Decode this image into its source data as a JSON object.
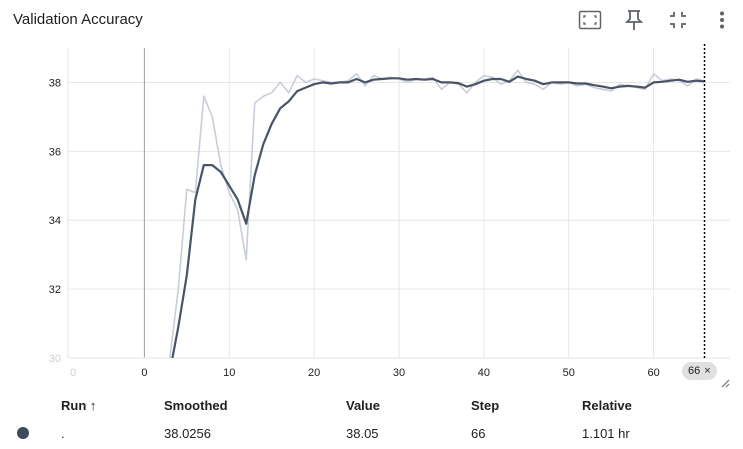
{
  "card": {
    "title": "Validation Accuracy",
    "icons": [
      "fullscreen-icon",
      "pin-icon",
      "fit-domain-icon",
      "more-vert-icon"
    ]
  },
  "colors": {
    "smoothed": "#4a5468",
    "raw": "#c8ced9",
    "grid": "#e6e6e6",
    "axis": "#9e9e9e",
    "cursor": "#000000"
  },
  "step_chip": {
    "label": "66",
    "close_glyph": "×"
  },
  "table": {
    "headers": {
      "run": "Run ↑",
      "smoothed": "Smoothed",
      "value": "Value",
      "step": "Step",
      "relative": "Relative"
    },
    "row": {
      "run": ".",
      "smoothed": "38.0256",
      "value": "38.05",
      "step": "66",
      "relative": "1.101 hr",
      "color": "#3f4a5c"
    }
  },
  "chart_data": {
    "type": "line",
    "title": "Validation Accuracy",
    "xlabel": "",
    "ylabel": "",
    "xlim": [
      -9,
      69
    ],
    "ylim": [
      30,
      39
    ],
    "xticks": [
      0,
      10,
      20,
      30,
      40,
      50,
      60
    ],
    "yticks": [
      30,
      32,
      34,
      36,
      38
    ],
    "faint_x_label": "0",
    "faint_y_label": "30",
    "grid": true,
    "cursor_step": 66,
    "series": [
      {
        "name": "",
        "role": "raw",
        "x": [
          3,
          4,
          5,
          6,
          7,
          8,
          9,
          10,
          11,
          12,
          13,
          14,
          15,
          16,
          17,
          18,
          19,
          20,
          21,
          22,
          23,
          24,
          25,
          26,
          27,
          28,
          29,
          30,
          31,
          32,
          33,
          34,
          35,
          36,
          37,
          38,
          39,
          40,
          41,
          42,
          43,
          44,
          45,
          46,
          47,
          48,
          49,
          50,
          51,
          52,
          53,
          54,
          55,
          56,
          57,
          58,
          59,
          60,
          61,
          62,
          63,
          64,
          65,
          66
        ],
        "y": [
          30,
          32,
          34.9,
          34.8,
          37.6,
          37.0,
          35.6,
          34.8,
          34.3,
          32.85,
          37.4,
          37.6,
          37.7,
          38.0,
          37.7,
          38.2,
          38.0,
          38.1,
          38.05,
          38.0,
          38.0,
          38.05,
          38.25,
          37.9,
          38.2,
          38.1,
          38.15,
          38.1,
          38.0,
          38.1,
          38.1,
          38.15,
          37.8,
          38.0,
          37.95,
          37.7,
          38.0,
          38.2,
          38.15,
          37.95,
          38.05,
          38.35,
          38.0,
          37.95,
          37.8,
          38.0,
          37.95,
          38.0,
          37.9,
          37.95,
          37.85,
          37.8,
          37.75,
          37.95,
          37.9,
          37.85,
          37.8,
          38.25,
          38.05,
          38.1,
          38.05,
          37.9,
          38.1,
          38.05
        ]
      },
      {
        "name": "",
        "role": "smoothed",
        "x": [
          3,
          4,
          5,
          6,
          7,
          8,
          9,
          10,
          11,
          12,
          13,
          14,
          15,
          16,
          17,
          18,
          19,
          20,
          21,
          22,
          23,
          24,
          25,
          26,
          27,
          28,
          29,
          30,
          31,
          32,
          33,
          34,
          35,
          36,
          37,
          38,
          39,
          40,
          41,
          42,
          43,
          44,
          45,
          46,
          47,
          48,
          49,
          50,
          51,
          52,
          53,
          54,
          55,
          56,
          57,
          58,
          59,
          60,
          61,
          62,
          63,
          64,
          65,
          66
        ],
        "y": [
          29.6,
          30.9,
          32.4,
          34.6,
          35.6,
          35.6,
          35.4,
          35.0,
          34.6,
          33.9,
          35.3,
          36.2,
          36.8,
          37.25,
          37.45,
          37.75,
          37.85,
          37.95,
          38.0,
          37.97,
          38.0,
          38.0,
          38.1,
          38.0,
          38.08,
          38.1,
          38.12,
          38.12,
          38.08,
          38.1,
          38.08,
          38.1,
          38.0,
          38.0,
          37.98,
          37.88,
          37.95,
          38.05,
          38.1,
          38.1,
          38.02,
          38.17,
          38.1,
          38.05,
          37.95,
          38.0,
          38.0,
          38.0,
          37.97,
          37.97,
          37.92,
          37.88,
          37.83,
          37.88,
          37.9,
          37.88,
          37.85,
          38.0,
          38.02,
          38.05,
          38.08,
          38.02,
          38.05,
          38.03
        ]
      }
    ]
  }
}
